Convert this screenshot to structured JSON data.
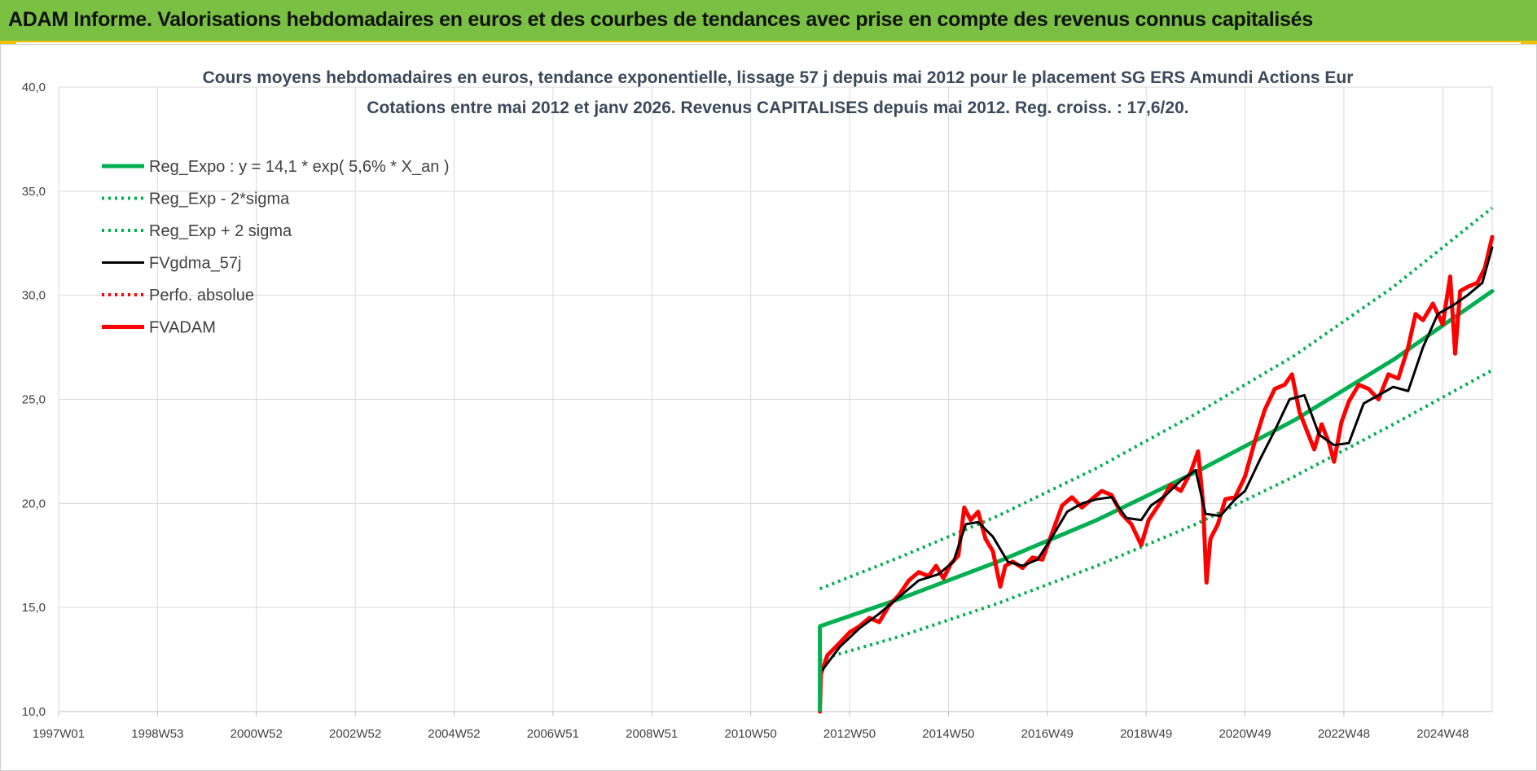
{
  "banner": {
    "title": "ADAM Informe. Valorisations hebdomadaires en euros et des courbes de tendances avec prise en compte des revenus connus capitalisés"
  },
  "colors": {
    "banner": "#7ac143",
    "accent": "#f3c000",
    "regression": "#00b050",
    "smoothed": "#000000",
    "price": "#ff0000",
    "grid": "#d9d9d9"
  },
  "chart_data": {
    "type": "line",
    "title_line1": "Cours moyens hebdomadaires en euros, tendance exponentielle, lissage 57 j depuis mai 2012 pour le placement SG ERS Amundi Actions Eur",
    "title_line2": "Cotations entre mai 2012 et janv 2026. Revenus CAPITALISES depuis mai 2012. Reg. croiss. : 17,6/20.",
    "ylim": [
      10,
      40
    ],
    "yticks": [
      "10,0",
      "15,0",
      "20,0",
      "25,0",
      "30,0",
      "35,0",
      "40,0"
    ],
    "xlim": [
      1997.0,
      2026.0
    ],
    "xticks": [
      "1997W01",
      "1998W53",
      "2000W52",
      "2002W52",
      "2004W52",
      "2006W51",
      "2008W51",
      "2010W50",
      "2012W50",
      "2014W50",
      "2016W49",
      "2018W49",
      "2020W49",
      "2022W48",
      "2024W48"
    ],
    "grid": true,
    "legend_position": "top-left",
    "series": [
      {
        "name": "Reg_Expo : y = 14,1 * exp( 5,6% *  X_an )",
        "style": "solid-thick",
        "color": "#00b050",
        "x": [
          2012.4,
          2014.0,
          2016.0,
          2018.0,
          2020.0,
          2022.0,
          2024.0,
          2026.0
        ],
        "values": [
          14.1,
          15.4,
          17.2,
          19.2,
          21.5,
          24.0,
          26.9,
          30.2
        ]
      },
      {
        "name": "Reg_Exp - 2*sigma",
        "style": "dotted",
        "color": "#00b050",
        "x": [
          2012.4,
          2014.0,
          2016.0,
          2018.0,
          2020.0,
          2022.0,
          2024.0,
          2026.0
        ],
        "values": [
          12.5,
          13.6,
          15.2,
          17.0,
          19.0,
          21.3,
          23.8,
          26.4
        ]
      },
      {
        "name": "Reg_Exp + 2 sigma",
        "style": "dotted",
        "color": "#00b050",
        "x": [
          2012.4,
          2014.0,
          2016.0,
          2018.0,
          2020.0,
          2022.0,
          2024.0,
          2026.0
        ],
        "values": [
          15.9,
          17.4,
          19.4,
          21.7,
          24.3,
          27.1,
          30.4,
          34.2
        ]
      },
      {
        "name": "FVgdma_57j",
        "style": "solid",
        "color": "#000000",
        "x": [
          2012.45,
          2012.8,
          2013.2,
          2013.6,
          2014.0,
          2014.4,
          2014.8,
          2015.1,
          2015.35,
          2015.6,
          2015.9,
          2016.2,
          2016.5,
          2016.8,
          2017.1,
          2017.4,
          2017.7,
          2018.0,
          2018.3,
          2018.6,
          2018.9,
          2019.1,
          2019.4,
          2019.7,
          2020.0,
          2020.2,
          2020.5,
          2020.8,
          2021.0,
          2021.3,
          2021.6,
          2021.9,
          2022.2,
          2022.5,
          2022.8,
          2023.1,
          2023.4,
          2023.7,
          2024.0,
          2024.3,
          2024.6,
          2024.9,
          2025.2,
          2025.5,
          2025.8,
          2026.0
        ],
        "values": [
          12.0,
          13.1,
          14.0,
          14.7,
          15.5,
          16.3,
          16.6,
          17.2,
          19.0,
          19.1,
          18.4,
          17.2,
          17.0,
          17.3,
          18.4,
          19.6,
          20.0,
          20.2,
          20.3,
          19.3,
          19.2,
          19.9,
          20.4,
          21.1,
          21.6,
          19.5,
          19.4,
          20.2,
          20.6,
          22.1,
          23.5,
          25.0,
          25.2,
          23.3,
          22.8,
          22.9,
          24.8,
          25.2,
          25.6,
          25.4,
          27.5,
          29.1,
          29.5,
          30.0,
          30.6,
          32.3
        ]
      },
      {
        "name": "Perfo. absolue",
        "style": "dotted",
        "color": "#ff0000",
        "x": [],
        "values": []
      },
      {
        "name": "FVADAM",
        "style": "solid-thick",
        "color": "#ff0000",
        "x": [
          2012.4,
          2012.42,
          2012.55,
          2012.8,
          2013.0,
          2013.2,
          2013.4,
          2013.6,
          2013.8,
          2014.0,
          2014.2,
          2014.4,
          2014.6,
          2014.75,
          2014.9,
          2015.05,
          2015.2,
          2015.32,
          2015.45,
          2015.6,
          2015.75,
          2015.9,
          2016.05,
          2016.15,
          2016.3,
          2016.5,
          2016.7,
          2016.9,
          2017.1,
          2017.3,
          2017.5,
          2017.7,
          2017.9,
          2018.1,
          2018.3,
          2018.5,
          2018.7,
          2018.9,
          2019.05,
          2019.3,
          2019.5,
          2019.7,
          2019.9,
          2020.05,
          2020.15,
          2020.22,
          2020.3,
          2020.45,
          2020.6,
          2020.8,
          2021.0,
          2021.2,
          2021.4,
          2021.6,
          2021.8,
          2021.95,
          2022.1,
          2022.25,
          2022.4,
          2022.55,
          2022.7,
          2022.8,
          2022.95,
          2023.1,
          2023.3,
          2023.5,
          2023.7,
          2023.9,
          2024.1,
          2024.3,
          2024.45,
          2024.6,
          2024.8,
          2025.0,
          2025.15,
          2025.25,
          2025.35,
          2025.5,
          2025.7,
          2025.85,
          2026.0
        ],
        "values": [
          10.0,
          11.8,
          12.7,
          13.3,
          13.8,
          14.1,
          14.5,
          14.3,
          15.1,
          15.6,
          16.3,
          16.7,
          16.5,
          17.0,
          16.4,
          17.1,
          17.5,
          19.8,
          19.2,
          19.6,
          18.3,
          17.7,
          16.0,
          17.0,
          17.2,
          16.9,
          17.4,
          17.3,
          18.6,
          19.9,
          20.3,
          19.8,
          20.2,
          20.6,
          20.4,
          19.5,
          19.0,
          18.0,
          19.2,
          20.1,
          20.9,
          20.6,
          21.5,
          22.5,
          20.0,
          16.2,
          18.3,
          19.0,
          20.2,
          20.3,
          21.3,
          23.0,
          24.5,
          25.5,
          25.7,
          26.2,
          24.4,
          23.5,
          22.6,
          23.8,
          22.9,
          22.0,
          23.9,
          24.9,
          25.7,
          25.5,
          25.0,
          26.2,
          26.0,
          27.5,
          29.1,
          28.8,
          29.6,
          28.6,
          30.9,
          27.2,
          30.2,
          30.4,
          30.6,
          31.3,
          32.8
        ]
      }
    ]
  }
}
